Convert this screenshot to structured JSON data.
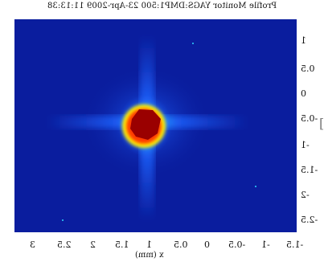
{
  "title": "Profile Monitor YAGS:DMP1:500 23-Apr-2009 11:13:38",
  "chart_data": {
    "type": "heatmap",
    "title": "Profile Monitor YAGS:DMP1:500 23-Apr-2009 11:13:38",
    "xlabel": "x (mm)",
    "ylabel": "",
    "x_ticks": [
      "3",
      "2.5",
      "2",
      "1.5",
      "1",
      "0.5",
      "0",
      "-0.5",
      "-1",
      "-1.5"
    ],
    "y_ticks": [
      "1",
      "0.5",
      "0",
      "-0.5",
      "-1",
      "-1.5",
      "-2",
      "-2.5"
    ],
    "peak_x_mm": 0.9,
    "peak_y_mm": -0.6,
    "colormap": [
      "#0a1d9e",
      "#1e63ff",
      "#2fd8ff",
      "#fff200",
      "#ff3a00",
      "#9a0000"
    ]
  }
}
